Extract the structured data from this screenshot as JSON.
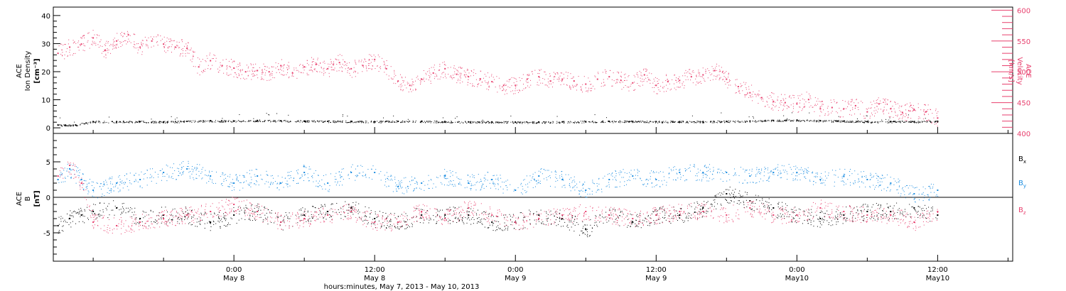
{
  "colors": {
    "black": "#000000",
    "pink": "#e8406e",
    "blue": "#1a8ce0"
  },
  "panels": {
    "top": {
      "left_axis_title_lines": [
        "ACE",
        "Ion Density",
        "[cm⁻³]"
      ],
      "right_axis_title_lines": [
        "ACE",
        "Velocity",
        "[km/s]"
      ]
    },
    "bottom": {
      "axis_title_lines": [
        "ACE",
        "B",
        "[nT]"
      ],
      "legend": [
        {
          "text": "Bx",
          "base": "B",
          "sub": "x",
          "color": "#000000"
        },
        {
          "text": "By",
          "base": "B",
          "sub": "y",
          "color": "#1a8ce0"
        },
        {
          "text": "Bz",
          "base": "B",
          "sub": "z",
          "color": "#e8406e"
        }
      ]
    }
  },
  "x_axis": {
    "title": "hours:minutes, May  7, 2013 - May 10, 2013",
    "tick_labels": [
      {
        "time": "0:00",
        "date": "May 8",
        "hour": 24
      },
      {
        "time": "12:00",
        "date": "May 8",
        "hour": 36
      },
      {
        "time": "0:00",
        "date": "May 9",
        "hour": 48
      },
      {
        "time": "12:00",
        "date": "May 9",
        "hour": 60
      },
      {
        "time": "0:00",
        "date": "May10",
        "hour": 72
      },
      {
        "time": "12:00",
        "date": "May10",
        "hour": 84
      }
    ]
  },
  "chart_data": [
    {
      "type": "scatter",
      "title": "",
      "x_units": "hours since 2013-05-07 00:00",
      "xlim": [
        8.6,
        90.4
      ],
      "ylabel": "ACE Ion Density [cm⁻³]",
      "ylim": [
        -2,
        43
      ],
      "yticks": [
        0,
        10,
        20,
        30,
        40
      ],
      "y2label": "ACE Velocity [km/s]",
      "y2lim": [
        400,
        605
      ],
      "y2ticks": [
        400,
        450,
        500,
        550,
        600
      ],
      "series": [
        {
          "name": "Ion Density",
          "axis": "left",
          "color": "#000000",
          "x": [
            9,
            10.5,
            12,
            14,
            16,
            18,
            20,
            22,
            24,
            26,
            28,
            30,
            32,
            34,
            36,
            38,
            40,
            42,
            44,
            46,
            48,
            50,
            52,
            54,
            56,
            58,
            60,
            62,
            64,
            66,
            68,
            70,
            72,
            74,
            76,
            78,
            80,
            82,
            84
          ],
          "y": [
            1,
            1,
            2.2,
            2.2,
            2.2,
            2.1,
            2.3,
            2.5,
            2.4,
            2.6,
            2.5,
            2.4,
            2.3,
            2.3,
            2.2,
            2.3,
            2.3,
            2.2,
            2.1,
            2.1,
            2.0,
            2.0,
            2.1,
            2.2,
            2.3,
            2.3,
            2.2,
            2.2,
            2.2,
            2.3,
            2.4,
            2.6,
            2.7,
            2.5,
            2.4,
            2.2,
            2.2,
            2.2,
            2.3
          ]
        },
        {
          "name": "Velocity",
          "axis": "right",
          "color": "#e8406e",
          "x": [
            9,
            10,
            11,
            12,
            13,
            14,
            15,
            16,
            17,
            18,
            19,
            20,
            21,
            22,
            23,
            24,
            25,
            26,
            27,
            28,
            29,
            30,
            31,
            32,
            33,
            34,
            35,
            36,
            37,
            38,
            39,
            40,
            41,
            42,
            43,
            44,
            45,
            46,
            47,
            48,
            49,
            50,
            51,
            52,
            53,
            54,
            55,
            56,
            57,
            58,
            59,
            60,
            61,
            62,
            63,
            64,
            65,
            66,
            67,
            68,
            69,
            70,
            71,
            72,
            73,
            74,
            75,
            76,
            77,
            78,
            79,
            80,
            81,
            82,
            83,
            84
          ],
          "y": [
            530,
            540,
            545,
            555,
            535,
            550,
            560,
            540,
            550,
            545,
            540,
            538,
            508,
            518,
            510,
            506,
            500,
            502,
            500,
            510,
            498,
            508,
            512,
            505,
            515,
            505,
            510,
            520,
            505,
            485,
            478,
            488,
            498,
            505,
            496,
            492,
            488,
            484,
            478,
            478,
            488,
            492,
            485,
            488,
            485,
            480,
            488,
            492,
            486,
            482,
            495,
            478,
            484,
            486,
            492,
            495,
            502,
            488,
            476,
            466,
            458,
            452,
            450,
            448,
            455,
            440,
            442,
            440,
            445,
            435,
            448,
            440,
            434,
            438,
            435,
            425
          ]
        }
      ]
    },
    {
      "type": "scatter",
      "title": "",
      "x_units": "hours since 2013-05-07 00:00",
      "xlim": [
        8.6,
        90.4
      ],
      "ylabel": "ACE B [nT]",
      "ylim": [
        -9,
        9
      ],
      "yticks": [
        -5,
        0,
        5
      ],
      "reference_line": 0,
      "series": [
        {
          "name": "Bx",
          "color": "#000000",
          "x": [
            9,
            10,
            11,
            12,
            14,
            16,
            18,
            20,
            22,
            24,
            26,
            28,
            30,
            32,
            34,
            36,
            38,
            40,
            42,
            44,
            46,
            48,
            50,
            52,
            54,
            56,
            58,
            60,
            62,
            64,
            66,
            68,
            70,
            72,
            74,
            76,
            78,
            80,
            82,
            84
          ],
          "y": [
            -4,
            -3,
            -2.5,
            -2,
            -1.5,
            -3,
            -2.5,
            -2.5,
            -3.5,
            -2.5,
            -2,
            -3.5,
            -2.5,
            -2,
            -1.5,
            -3,
            -3.5,
            -2.5,
            -2.5,
            -2.5,
            -3.5,
            -3.5,
            -2.5,
            -3,
            -4.5,
            -2.5,
            -3.5,
            -2.5,
            -2.5,
            -1.5,
            0.5,
            -0.5,
            -1.5,
            -2.5,
            -3,
            -2.5,
            -2,
            -2,
            -1.5,
            -2.5
          ]
        },
        {
          "name": "By",
          "color": "#1a8ce0",
          "x": [
            9,
            10,
            11,
            12,
            14,
            16,
            18,
            20,
            22,
            24,
            26,
            28,
            30,
            32,
            34,
            36,
            38,
            40,
            42,
            44,
            46,
            48,
            50,
            52,
            54,
            56,
            58,
            60,
            62,
            64,
            66,
            68,
            70,
            72,
            74,
            76,
            78,
            80,
            82,
            84
          ],
          "y": [
            2.5,
            4,
            2.5,
            1,
            2,
            2.5,
            3.5,
            4,
            3,
            2,
            3,
            2,
            3.5,
            2,
            3.5,
            3.5,
            1.5,
            2,
            3,
            2,
            2.5,
            1,
            3,
            2.5,
            1,
            2.5,
            3,
            2.5,
            3.5,
            3.5,
            3.5,
            3,
            3.5,
            3.5,
            2.5,
            3,
            2.5,
            2,
            0.5,
            1
          ]
        },
        {
          "name": "Bz",
          "color": "#e8406e",
          "x": [
            9,
            10,
            11,
            12,
            14,
            16,
            18,
            20,
            22,
            24,
            26,
            28,
            30,
            32,
            34,
            36,
            38,
            40,
            42,
            44,
            46,
            48,
            50,
            52,
            54,
            56,
            58,
            60,
            62,
            64,
            66,
            68,
            70,
            72,
            74,
            76,
            78,
            80,
            82,
            84
          ],
          "y": [
            3,
            4.5,
            2,
            -3.5,
            -4,
            -3.5,
            -3,
            -2.5,
            -2,
            -1,
            -2,
            -3.5,
            -3,
            -2.5,
            -2,
            -3.5,
            -3.5,
            -2,
            -3,
            -1.5,
            -2.5,
            -3.5,
            -3,
            -2.5,
            -2,
            -2.5,
            -3,
            -2.5,
            -2,
            -2,
            -2.5,
            -1.5,
            -2.5,
            -2.5,
            -1.5,
            -2,
            -2.5,
            -2.5,
            -3.5,
            -2
          ]
        }
      ]
    }
  ]
}
